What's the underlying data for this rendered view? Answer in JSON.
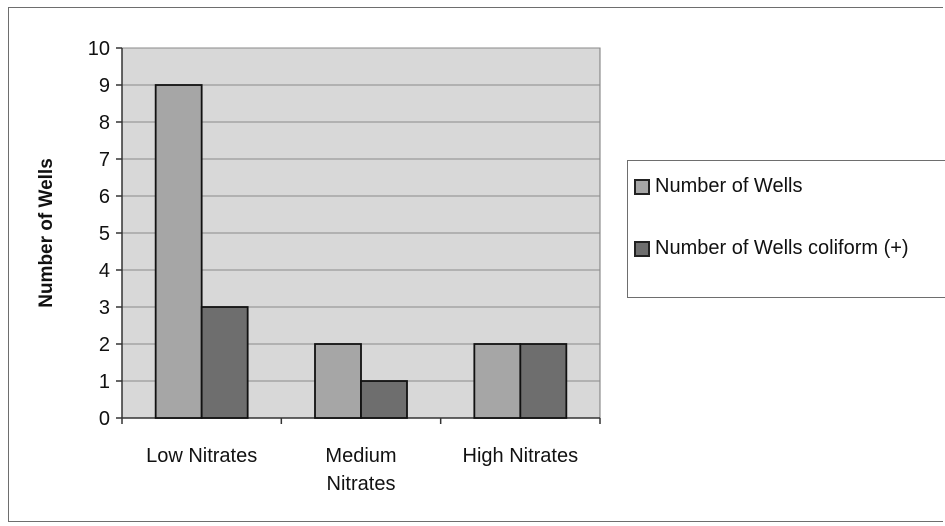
{
  "chart_data": {
    "type": "bar",
    "categories": [
      [
        "Low Nitrates"
      ],
      [
        "Medium",
        "Nitrates"
      ],
      [
        "High Nitrates"
      ]
    ],
    "series": [
      {
        "name": "Number of Wells",
        "values": [
          9,
          2,
          2
        ],
        "color": "#a6a6a6"
      },
      {
        "name": "Number of Wells coliform (+)",
        "values": [
          3,
          1,
          2
        ],
        "color": "#6e6e6e"
      }
    ],
    "xlabel": "",
    "ylabel": "Number of Wells",
    "ylim": [
      0,
      10
    ],
    "yticks": [
      0,
      1,
      2,
      3,
      4,
      5,
      6,
      7,
      8,
      9,
      10
    ],
    "grid": true,
    "legend_position": "right",
    "plot_background": "#d8d8d8"
  }
}
